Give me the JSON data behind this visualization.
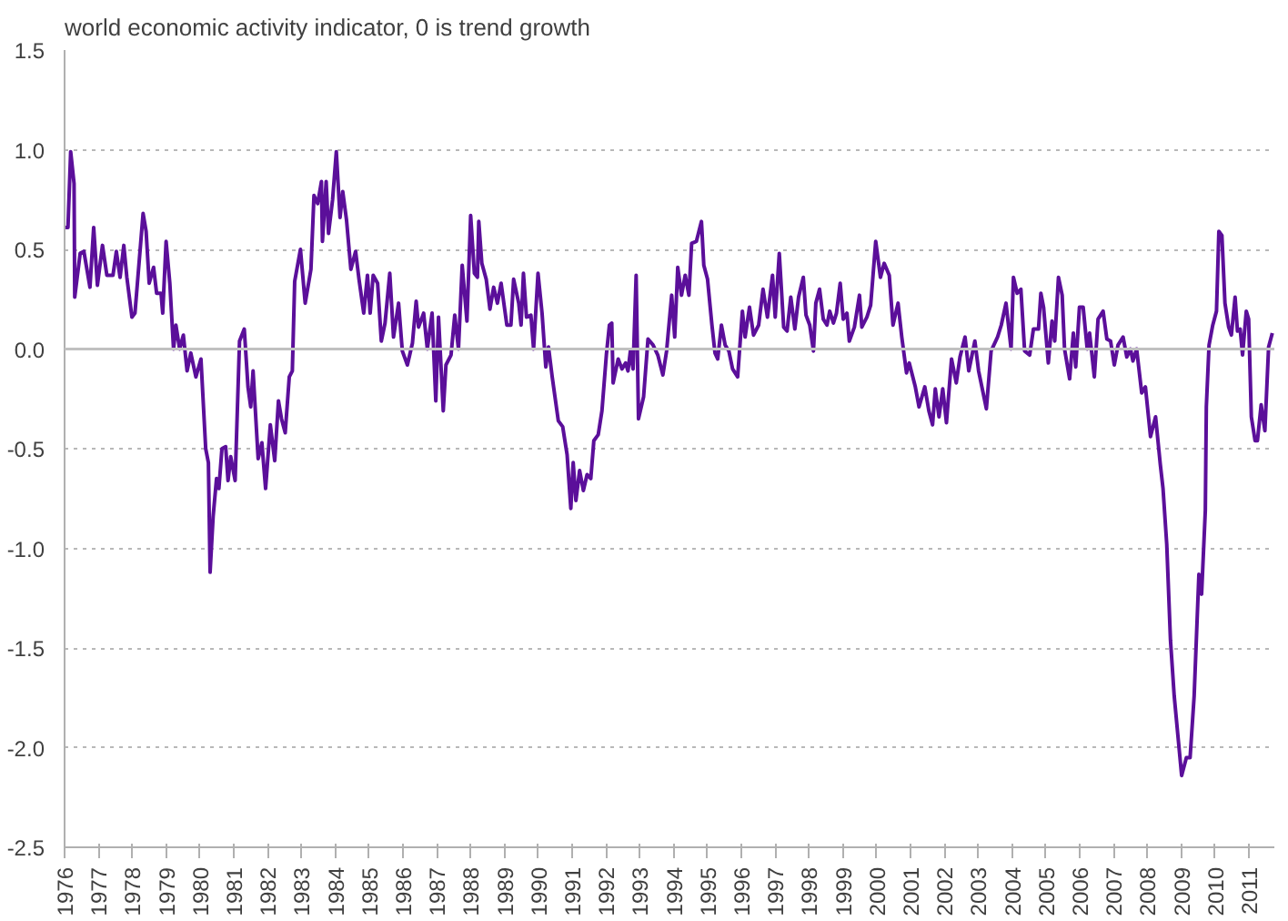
{
  "chart_data": {
    "type": "line",
    "title": "world economic activity indicator, 0 is trend growth",
    "xlim": [
      1976,
      2011.75
    ],
    "xticks": [
      1976,
      1977,
      1978,
      1979,
      1980,
      1981,
      1982,
      1983,
      1984,
      1985,
      1986,
      1987,
      1988,
      1989,
      1990,
      1991,
      1992,
      1993,
      1994,
      1995,
      1996,
      1997,
      1998,
      1999,
      2000,
      2001,
      2002,
      2003,
      2004,
      2005,
      2006,
      2007,
      2008,
      2009,
      2010,
      2011
    ],
    "ylim": [
      -2.5,
      1.5
    ],
    "yticks": [
      {
        "value": -2.5,
        "label": "-2.5"
      },
      {
        "value": -2.0,
        "label": "-2.0"
      },
      {
        "value": -1.5,
        "label": "-1.5"
      },
      {
        "value": -1.0,
        "label": "-1.0"
      },
      {
        "value": -0.5,
        "label": "-0.5"
      },
      {
        "value": 0,
        "label": "0.0"
      },
      {
        "value": 0.5,
        "label": "0.5"
      },
      {
        "value": 1.0,
        "label": "1.0"
      },
      {
        "value": 1.5,
        "label": "1.5"
      }
    ],
    "grid": "y",
    "line_style": "solid",
    "marker": "none",
    "ref_lines": [
      {
        "axis": "y",
        "value": 0,
        "color": "#c0c0c0"
      }
    ],
    "x": [
      1976.0,
      1976.1,
      1976.18,
      1976.28,
      1976.3,
      1976.46,
      1976.57,
      1976.75,
      1976.86,
      1976.97,
      1977.12,
      1977.25,
      1977.43,
      1977.53,
      1977.64,
      1977.75,
      1977.84,
      1977.99,
      1978.08,
      1978.32,
      1978.41,
      1978.5,
      1978.63,
      1978.72,
      1978.85,
      1978.9,
      1979.0,
      1979.11,
      1979.22,
      1979.29,
      1979.4,
      1979.51,
      1979.62,
      1979.73,
      1979.88,
      1980.03,
      1980.17,
      1980.25,
      1980.3,
      1980.39,
      1980.49,
      1980.56,
      1980.65,
      1980.76,
      1980.83,
      1980.91,
      1981.04,
      1981.17,
      1981.31,
      1981.42,
      1981.5,
      1981.57,
      1981.72,
      1981.83,
      1981.94,
      1982.08,
      1982.21,
      1982.32,
      1982.41,
      1982.52,
      1982.64,
      1982.73,
      1982.8,
      1982.97,
      1983.11,
      1983.28,
      1983.37,
      1983.48,
      1983.59,
      1983.62,
      1983.73,
      1983.8,
      1983.92,
      1984.03,
      1984.14,
      1984.22,
      1984.33,
      1984.46,
      1984.6,
      1984.7,
      1984.84,
      1984.95,
      1985.03,
      1985.12,
      1985.25,
      1985.36,
      1985.47,
      1985.61,
      1985.72,
      1985.87,
      1985.98,
      1986.13,
      1986.28,
      1986.39,
      1986.46,
      1986.61,
      1986.72,
      1986.86,
      1986.97,
      1987.05,
      1987.19,
      1987.27,
      1987.42,
      1987.53,
      1987.64,
      1987.75,
      1987.89,
      1988.0,
      1988.11,
      1988.2,
      1988.24,
      1988.33,
      1988.46,
      1988.57,
      1988.68,
      1988.79,
      1988.9,
      1989.07,
      1989.19,
      1989.27,
      1989.42,
      1989.49,
      1989.56,
      1989.65,
      1989.78,
      1989.86,
      1989.99,
      1990.11,
      1990.22,
      1990.3,
      1990.41,
      1990.59,
      1990.72,
      1990.85,
      1990.96,
      1991.03,
      1991.11,
      1991.22,
      1991.33,
      1991.44,
      1991.55,
      1991.64,
      1991.77,
      1991.88,
      1992.01,
      1992.1,
      1992.17,
      1992.21,
      1992.36,
      1992.47,
      1992.58,
      1992.65,
      1992.72,
      1992.8,
      1992.89,
      1992.96,
      1993.11,
      1993.24,
      1993.39,
      1993.53,
      1993.68,
      1993.79,
      1993.94,
      1994.03,
      1994.12,
      1994.23,
      1994.34,
      1994.45,
      1994.53,
      1994.67,
      1994.82,
      1994.89,
      1995.0,
      1995.13,
      1995.22,
      1995.3,
      1995.41,
      1995.52,
      1995.63,
      1995.74,
      1995.89,
      1996.03,
      1996.11,
      1996.24,
      1996.36,
      1996.51,
      1996.64,
      1996.77,
      1996.92,
      1997.0,
      1997.12,
      1997.25,
      1997.35,
      1997.46,
      1997.58,
      1997.69,
      1997.83,
      1997.91,
      1998.02,
      1998.13,
      1998.2,
      1998.31,
      1998.42,
      1998.53,
      1998.61,
      1998.72,
      1998.81,
      1998.92,
      1999.01,
      1999.12,
      1999.19,
      1999.34,
      1999.49,
      1999.56,
      1999.71,
      1999.82,
      1999.97,
      2000.11,
      2000.22,
      2000.37,
      2000.48,
      2000.63,
      2000.74,
      2000.88,
      2000.96,
      2001.14,
      2001.25,
      2001.42,
      2001.54,
      2001.65,
      2001.73,
      2001.84,
      2001.95,
      2002.06,
      2002.21,
      2002.35,
      2002.46,
      2002.61,
      2002.72,
      2002.9,
      2003.01,
      2003.24,
      2003.38,
      2003.57,
      2003.68,
      2003.82,
      2003.97,
      2004.04,
      2004.15,
      2004.26,
      2004.37,
      2004.52,
      2004.63,
      2004.78,
      2004.85,
      2004.93,
      2005.07,
      2005.18,
      2005.26,
      2005.37,
      2005.48,
      2005.55,
      2005.7,
      2005.81,
      2005.88,
      2005.99,
      2006.1,
      2006.22,
      2006.29,
      2006.43,
      2006.54,
      2006.69,
      2006.8,
      2006.91,
      2007.02,
      2007.13,
      2007.28,
      2007.39,
      2007.5,
      2007.57,
      2007.68,
      2007.83,
      2007.94,
      2008.09,
      2008.24,
      2008.38,
      2008.46,
      2008.57,
      2008.68,
      2008.79,
      2008.9,
      2009.01,
      2009.15,
      2009.26,
      2009.38,
      2009.52,
      2009.6,
      2009.71,
      2009.74,
      2009.82,
      2009.93,
      2010.04,
      2010.11,
      2010.2,
      2010.29,
      2010.4,
      2010.48,
      2010.59,
      2010.66,
      2010.74,
      2010.81,
      2010.92,
      2010.99,
      2011.07,
      2011.18,
      2011.25,
      2011.36,
      2011.47,
      2011.58,
      2011.69
    ],
    "series": [
      {
        "color": "#5b0f9a",
        "values": [
          0.61,
          0.61,
          0.99,
          0.83,
          0.26,
          0.48,
          0.49,
          0.31,
          0.61,
          0.32,
          0.52,
          0.37,
          0.37,
          0.49,
          0.36,
          0.52,
          0.36,
          0.16,
          0.18,
          0.68,
          0.59,
          0.33,
          0.41,
          0.28,
          0.28,
          0.18,
          0.54,
          0.33,
          0.0,
          0.12,
          0.0,
          0.07,
          -0.11,
          -0.02,
          -0.14,
          -0.05,
          -0.5,
          -0.57,
          -1.12,
          -0.84,
          -0.65,
          -0.7,
          -0.5,
          -0.49,
          -0.66,
          -0.54,
          -0.66,
          0.04,
          0.1,
          -0.19,
          -0.29,
          -0.11,
          -0.55,
          -0.47,
          -0.7,
          -0.38,
          -0.56,
          -0.26,
          -0.35,
          -0.42,
          -0.14,
          -0.11,
          0.34,
          0.5,
          0.23,
          0.4,
          0.77,
          0.73,
          0.84,
          0.54,
          0.84,
          0.58,
          0.75,
          0.99,
          0.66,
          0.79,
          0.65,
          0.4,
          0.49,
          0.35,
          0.18,
          0.37,
          0.18,
          0.37,
          0.33,
          0.04,
          0.13,
          0.38,
          0.06,
          0.23,
          -0.01,
          -0.08,
          0.03,
          0.24,
          0.11,
          0.18,
          0.0,
          0.18,
          -0.26,
          0.16,
          -0.31,
          -0.08,
          -0.03,
          0.17,
          0.0,
          0.42,
          0.14,
          0.67,
          0.38,
          0.36,
          0.64,
          0.43,
          0.35,
          0.2,
          0.31,
          0.23,
          0.33,
          0.12,
          0.12,
          0.35,
          0.23,
          0.12,
          0.38,
          0.16,
          0.17,
          0.0,
          0.38,
          0.18,
          -0.09,
          0.01,
          -0.14,
          -0.36,
          -0.39,
          -0.53,
          -0.8,
          -0.57,
          -0.76,
          -0.61,
          -0.71,
          -0.63,
          -0.65,
          -0.46,
          -0.43,
          -0.31,
          -0.03,
          0.12,
          0.13,
          -0.17,
          -0.05,
          -0.1,
          -0.07,
          -0.11,
          -0.01,
          -0.1,
          0.37,
          -0.35,
          -0.24,
          0.05,
          0.02,
          -0.03,
          -0.13,
          -0.01,
          0.27,
          0.06,
          0.41,
          0.27,
          0.37,
          0.27,
          0.53,
          0.54,
          0.64,
          0.42,
          0.35,
          0.12,
          -0.02,
          -0.05,
          0.12,
          0.02,
          -0.01,
          -0.1,
          -0.14,
          0.19,
          0.06,
          0.21,
          0.07,
          0.12,
          0.3,
          0.16,
          0.37,
          0.16,
          0.48,
          0.11,
          0.09,
          0.26,
          0.1,
          0.26,
          0.36,
          0.17,
          0.12,
          -0.01,
          0.23,
          0.3,
          0.15,
          0.12,
          0.19,
          0.13,
          0.18,
          0.33,
          0.15,
          0.18,
          0.04,
          0.11,
          0.27,
          0.11,
          0.16,
          0.22,
          0.54,
          0.36,
          0.43,
          0.37,
          0.12,
          0.23,
          0.06,
          -0.12,
          -0.07,
          -0.19,
          -0.29,
          -0.19,
          -0.31,
          -0.38,
          -0.2,
          -0.34,
          -0.2,
          -0.37,
          -0.05,
          -0.17,
          -0.04,
          0.06,
          -0.11,
          0.04,
          -0.11,
          -0.3,
          -0.01,
          0.06,
          0.12,
          0.23,
          0.0,
          0.36,
          0.28,
          0.3,
          -0.01,
          -0.03,
          0.1,
          0.1,
          0.28,
          0.21,
          -0.07,
          0.14,
          0.04,
          0.36,
          0.27,
          0.0,
          -0.15,
          0.08,
          -0.09,
          0.21,
          0.21,
          0.0,
          0.08,
          -0.14,
          0.15,
          0.19,
          0.05,
          0.04,
          -0.08,
          0.02,
          0.06,
          -0.04,
          0.0,
          -0.06,
          0.0,
          -0.22,
          -0.19,
          -0.44,
          -0.34,
          -0.58,
          -0.7,
          -0.98,
          -1.46,
          -1.74,
          -1.94,
          -2.14,
          -2.05,
          -2.05,
          -1.74,
          -1.13,
          -1.23,
          -0.81,
          -0.29,
          0.02,
          0.12,
          0.19,
          0.59,
          0.57,
          0.23,
          0.11,
          0.07,
          0.26,
          0.09,
          0.1,
          -0.03,
          0.19,
          0.15,
          -0.34,
          -0.46,
          -0.46,
          -0.28,
          -0.41,
          0.01,
          0.08
        ]
      }
    ]
  }
}
